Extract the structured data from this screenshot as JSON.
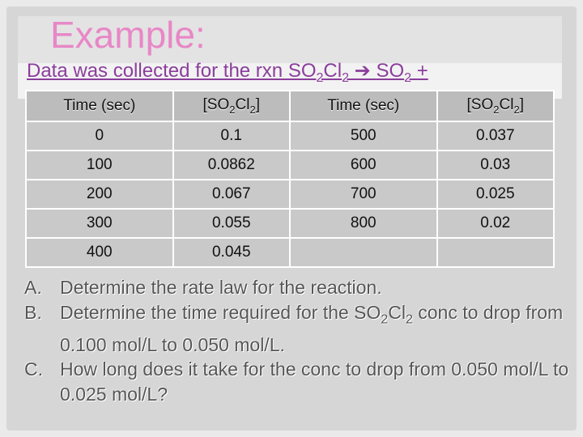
{
  "title": "Example:",
  "subtitle": {
    "prefix": "Data was collected for the rxn SO",
    "sub1": "2",
    "mid1": "Cl",
    "sub2": "2",
    "arrow": " ➔ ",
    "mid2": "SO",
    "sub3": "2",
    "suffix": " +"
  },
  "table": {
    "headers": [
      {
        "text": "Time (sec)"
      },
      {
        "pre": "[SO",
        "s1": "2",
        "mid": "Cl",
        "s2": "2",
        "post": "]"
      },
      {
        "text": "Time (sec)"
      },
      {
        "pre": "[SO",
        "s1": "2",
        "mid": "Cl",
        "s2": "2",
        "post": "]"
      }
    ],
    "rows": [
      [
        "0",
        "0.1",
        "500",
        "0.037"
      ],
      [
        "100",
        "0.0862",
        "600",
        "0.03"
      ],
      [
        "200",
        "0.067",
        "700",
        "0.025"
      ],
      [
        "300",
        "0.055",
        "800",
        "0.02"
      ],
      [
        "400",
        "0.045",
        "",
        ""
      ]
    ]
  },
  "questions": {
    "a": {
      "letter": "A.",
      "text": "Determine the rate law for the reaction."
    },
    "b": {
      "letter": "B.",
      "pre": "Determine the time required for the SO",
      "s1": "2",
      "mid": "Cl",
      "s2": "2",
      "post": " conc to drop from 0.100 mol/L to 0.050 mol/L."
    },
    "c": {
      "letter": "C.",
      "text": "How long does it take for the conc to drop from 0.050 mol/L to 0.025 mol/L?"
    }
  }
}
